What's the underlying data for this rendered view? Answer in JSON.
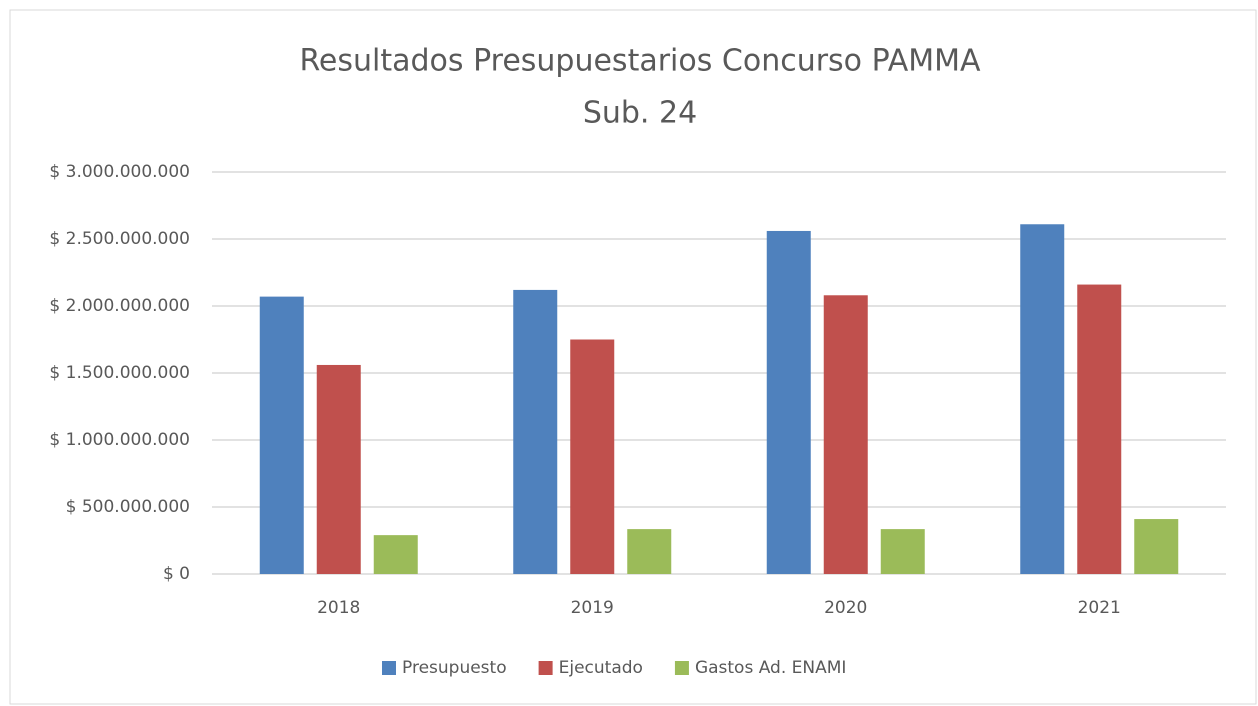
{
  "chart_data": {
    "type": "bar",
    "title": [
      "Resultados Presupuestarios Concurso PAMMA",
      "Sub. 24"
    ],
    "categories": [
      "2018",
      "2019",
      "2020",
      "2021"
    ],
    "series": [
      {
        "name": "Presupuesto",
        "color": "#4f81bd",
        "values": [
          2070000000,
          2120000000,
          2560000000,
          2610000000
        ]
      },
      {
        "name": "Ejecutado",
        "color": "#c0504d",
        "values": [
          1560000000,
          1750000000,
          2080000000,
          2160000000
        ]
      },
      {
        "name": "Gastos Ad. ENAMI",
        "color": "#9bbb59",
        "values": [
          290000000,
          335000000,
          335000000,
          410000000
        ]
      }
    ],
    "ylim": [
      0,
      3000000000
    ],
    "yticks": [
      {
        "value": 0,
        "label": "$ 0"
      },
      {
        "value": 500000000,
        "label": "$ 500.000.000"
      },
      {
        "value": 1000000000,
        "label": "$ 1.000.000.000"
      },
      {
        "value": 1500000000,
        "label": "$ 1.500.000.000"
      },
      {
        "value": 2000000000,
        "label": "$ 2.000.000.000"
      },
      {
        "value": 2500000000,
        "label": "$ 2.500.000.000"
      },
      {
        "value": 3000000000,
        "label": "$ 3.000.000.000"
      }
    ],
    "grid": true,
    "legend": "bottom"
  }
}
